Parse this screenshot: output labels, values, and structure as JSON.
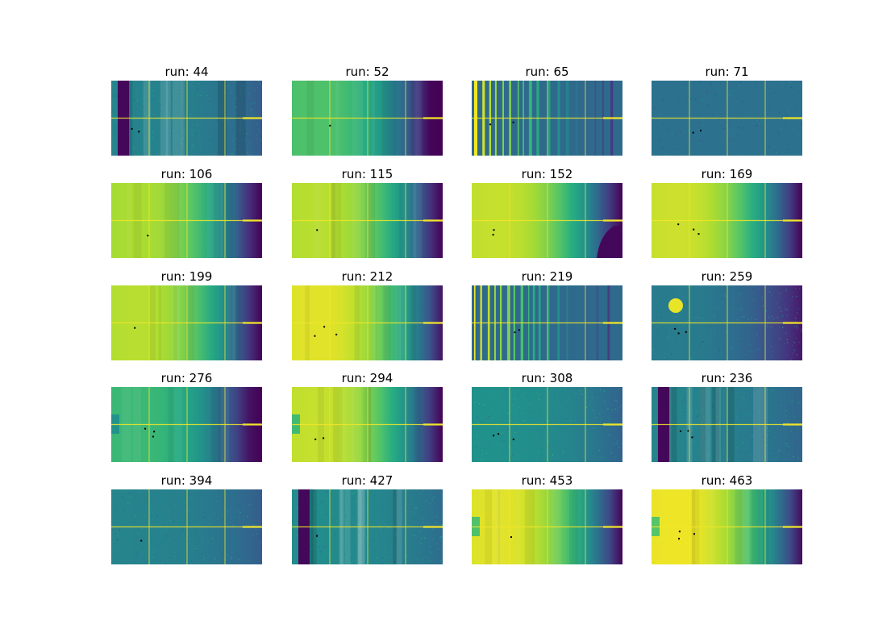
{
  "chart_data": {
    "type": "heatmap",
    "colormap": "viridis",
    "layout": {
      "rows": 5,
      "cols": 4
    },
    "panels": [
      {
        "title": "run: 44",
        "level": 0.45,
        "falloff": 0.25,
        "stripes": "dense",
        "pattern": "segmented"
      },
      {
        "title": "run: 52",
        "level": 0.72,
        "falloff": 0.9,
        "stripes": "faint",
        "pattern": "smooth"
      },
      {
        "title": "run: 65",
        "level": 0.55,
        "falloff": 0.55,
        "stripes": "bars",
        "pattern": "bars"
      },
      {
        "title": "run: 71",
        "level": 0.38,
        "falloff": 0.0,
        "stripes": "none",
        "pattern": "noise"
      },
      {
        "title": "run: 106",
        "level": 0.88,
        "falloff": 0.95,
        "stripes": "faint",
        "pattern": "smooth"
      },
      {
        "title": "run: 115",
        "level": 0.9,
        "falloff": 0.95,
        "stripes": "faint",
        "pattern": "smooth"
      },
      {
        "title": "run: 152",
        "level": 0.92,
        "falloff": 0.95,
        "stripes": "none",
        "pattern": "smooth"
      },
      {
        "title": "run: 169",
        "level": 0.93,
        "falloff": 0.95,
        "stripes": "none",
        "pattern": "smooth"
      },
      {
        "title": "run: 199",
        "level": 0.9,
        "falloff": 0.95,
        "stripes": "faint",
        "pattern": "smooth"
      },
      {
        "title": "run: 212",
        "level": 0.96,
        "falloff": 0.9,
        "stripes": "faint",
        "pattern": "smooth"
      },
      {
        "title": "run: 219",
        "level": 0.7,
        "falloff": 0.7,
        "stripes": "bars",
        "pattern": "bars"
      },
      {
        "title": "run: 259",
        "level": 0.42,
        "falloff": 0.35,
        "stripes": "none",
        "pattern": "spot"
      },
      {
        "title": "run: 276",
        "level": 0.68,
        "falloff": 0.8,
        "stripes": "faint",
        "pattern": "smooth"
      },
      {
        "title": "run: 294",
        "level": 0.92,
        "falloff": 0.95,
        "stripes": "faint",
        "pattern": "smooth"
      },
      {
        "title": "run: 308",
        "level": 0.5,
        "falloff": 0.3,
        "stripes": "none",
        "pattern": "noise"
      },
      {
        "title": "run: 236",
        "level": 0.45,
        "falloff": 0.2,
        "stripes": "dense",
        "pattern": "segmented"
      },
      {
        "title": "run: 394",
        "level": 0.45,
        "falloff": 0.25,
        "stripes": "none",
        "pattern": "noise"
      },
      {
        "title": "run: 427",
        "level": 0.48,
        "falloff": 0.2,
        "stripes": "dense",
        "pattern": "segmented"
      },
      {
        "title": "run: 453",
        "level": 0.96,
        "falloff": 0.95,
        "stripes": "faint",
        "pattern": "smooth"
      },
      {
        "title": "run: 463",
        "level": 0.98,
        "falloff": 0.95,
        "stripes": "faint",
        "pattern": "smooth"
      }
    ]
  }
}
